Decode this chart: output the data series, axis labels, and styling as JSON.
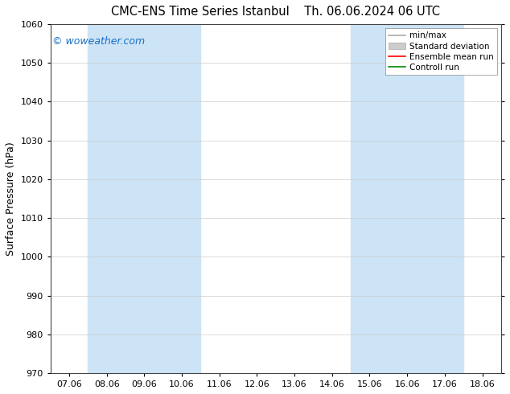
{
  "title_left": "CMC-ENS Time Series Istanbul",
  "title_right": "Th. 06.06.2024 06 UTC",
  "ylabel": "Surface Pressure (hPa)",
  "ylim": [
    970,
    1060
  ],
  "yticks": [
    970,
    980,
    990,
    1000,
    1010,
    1020,
    1030,
    1040,
    1050,
    1060
  ],
  "xtick_labels": [
    "07.06",
    "08.06",
    "09.06",
    "10.06",
    "11.06",
    "12.06",
    "13.06",
    "14.06",
    "15.06",
    "16.06",
    "17.06",
    "18.06"
  ],
  "xtick_positions": [
    0,
    1,
    2,
    3,
    4,
    5,
    6,
    7,
    8,
    9,
    10,
    11
  ],
  "xlim": [
    -0.5,
    11.5
  ],
  "shade_bands": [
    {
      "x_start": 0.5,
      "x_end": 3.5
    },
    {
      "x_start": 7.5,
      "x_end": 10.5
    }
  ],
  "shade_color": "#cce4f5",
  "watermark": "© woweather.com",
  "watermark_color": "#1a6ec7",
  "legend_entries": [
    {
      "label": "min/max",
      "color": "#aaaaaa",
      "lw": 1.2
    },
    {
      "label": "Standard deviation",
      "color": "#cccccc",
      "lw": 6
    },
    {
      "label": "Ensemble mean run",
      "color": "#ff0000",
      "lw": 1.2
    },
    {
      "label": "Controll run",
      "color": "#008800",
      "lw": 1.2
    }
  ],
  "background_color": "#ffffff",
  "grid_color": "#cccccc",
  "title_fontsize": 10.5,
  "ylabel_fontsize": 9,
  "tick_fontsize": 8,
  "legend_fontsize": 7.5,
  "watermark_fontsize": 9
}
